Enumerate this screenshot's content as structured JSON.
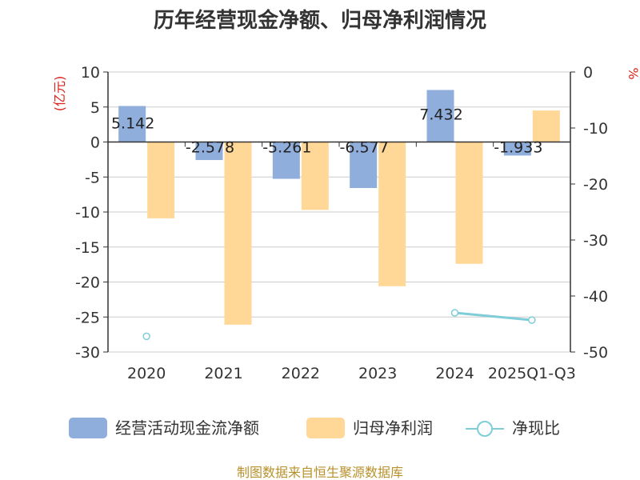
{
  "chart_data": {
    "type": "bar",
    "title": "历年经营现金净额、归母净利润情况",
    "categories": [
      "2020",
      "2021",
      "2022",
      "2023",
      "2024",
      "2025Q1-Q3"
    ],
    "left_axis": {
      "unit_label": "(亿元)",
      "ylim": [
        -30,
        10
      ],
      "ticks": [
        "10",
        "5",
        "0",
        "-5",
        "-10",
        "-15",
        "-20",
        "-25",
        "-30"
      ],
      "tick_values": [
        10,
        5,
        0,
        -5,
        -10,
        -15,
        -20,
        -25,
        -30
      ]
    },
    "right_axis": {
      "unit_label": "%",
      "ylim": [
        -50,
        0
      ],
      "ticks": [
        "0",
        "-10",
        "-20",
        "-30",
        "-40",
        "-50"
      ],
      "tick_values": [
        0,
        -10,
        -20,
        -30,
        -40,
        -50
      ]
    },
    "series": [
      {
        "name": "经营活动现金流净额",
        "kind": "bar",
        "axis": "left",
        "color": "#8faedb",
        "values": [
          5.142,
          -2.578,
          -5.261,
          -6.577,
          7.432,
          -1.933
        ],
        "labels": [
          "5.142",
          "-2.578",
          "-5.261",
          "-6.577",
          "7.432",
          "-1.933"
        ]
      },
      {
        "name": "归母净利润",
        "kind": "bar",
        "axis": "left",
        "color": "#ffd797",
        "values": [
          -10.9,
          -26.1,
          -9.7,
          -20.6,
          -17.4,
          4.5
        ]
      },
      {
        "name": "净现比",
        "kind": "line",
        "axis": "right",
        "color": "#7fcdd8",
        "values": [
          -47.2,
          null,
          null,
          null,
          -43.0,
          -44.3
        ]
      }
    ],
    "legend_position": "bottom",
    "grid": true
  },
  "footer": {
    "source": "制图数据来自恒生聚源数据库"
  }
}
